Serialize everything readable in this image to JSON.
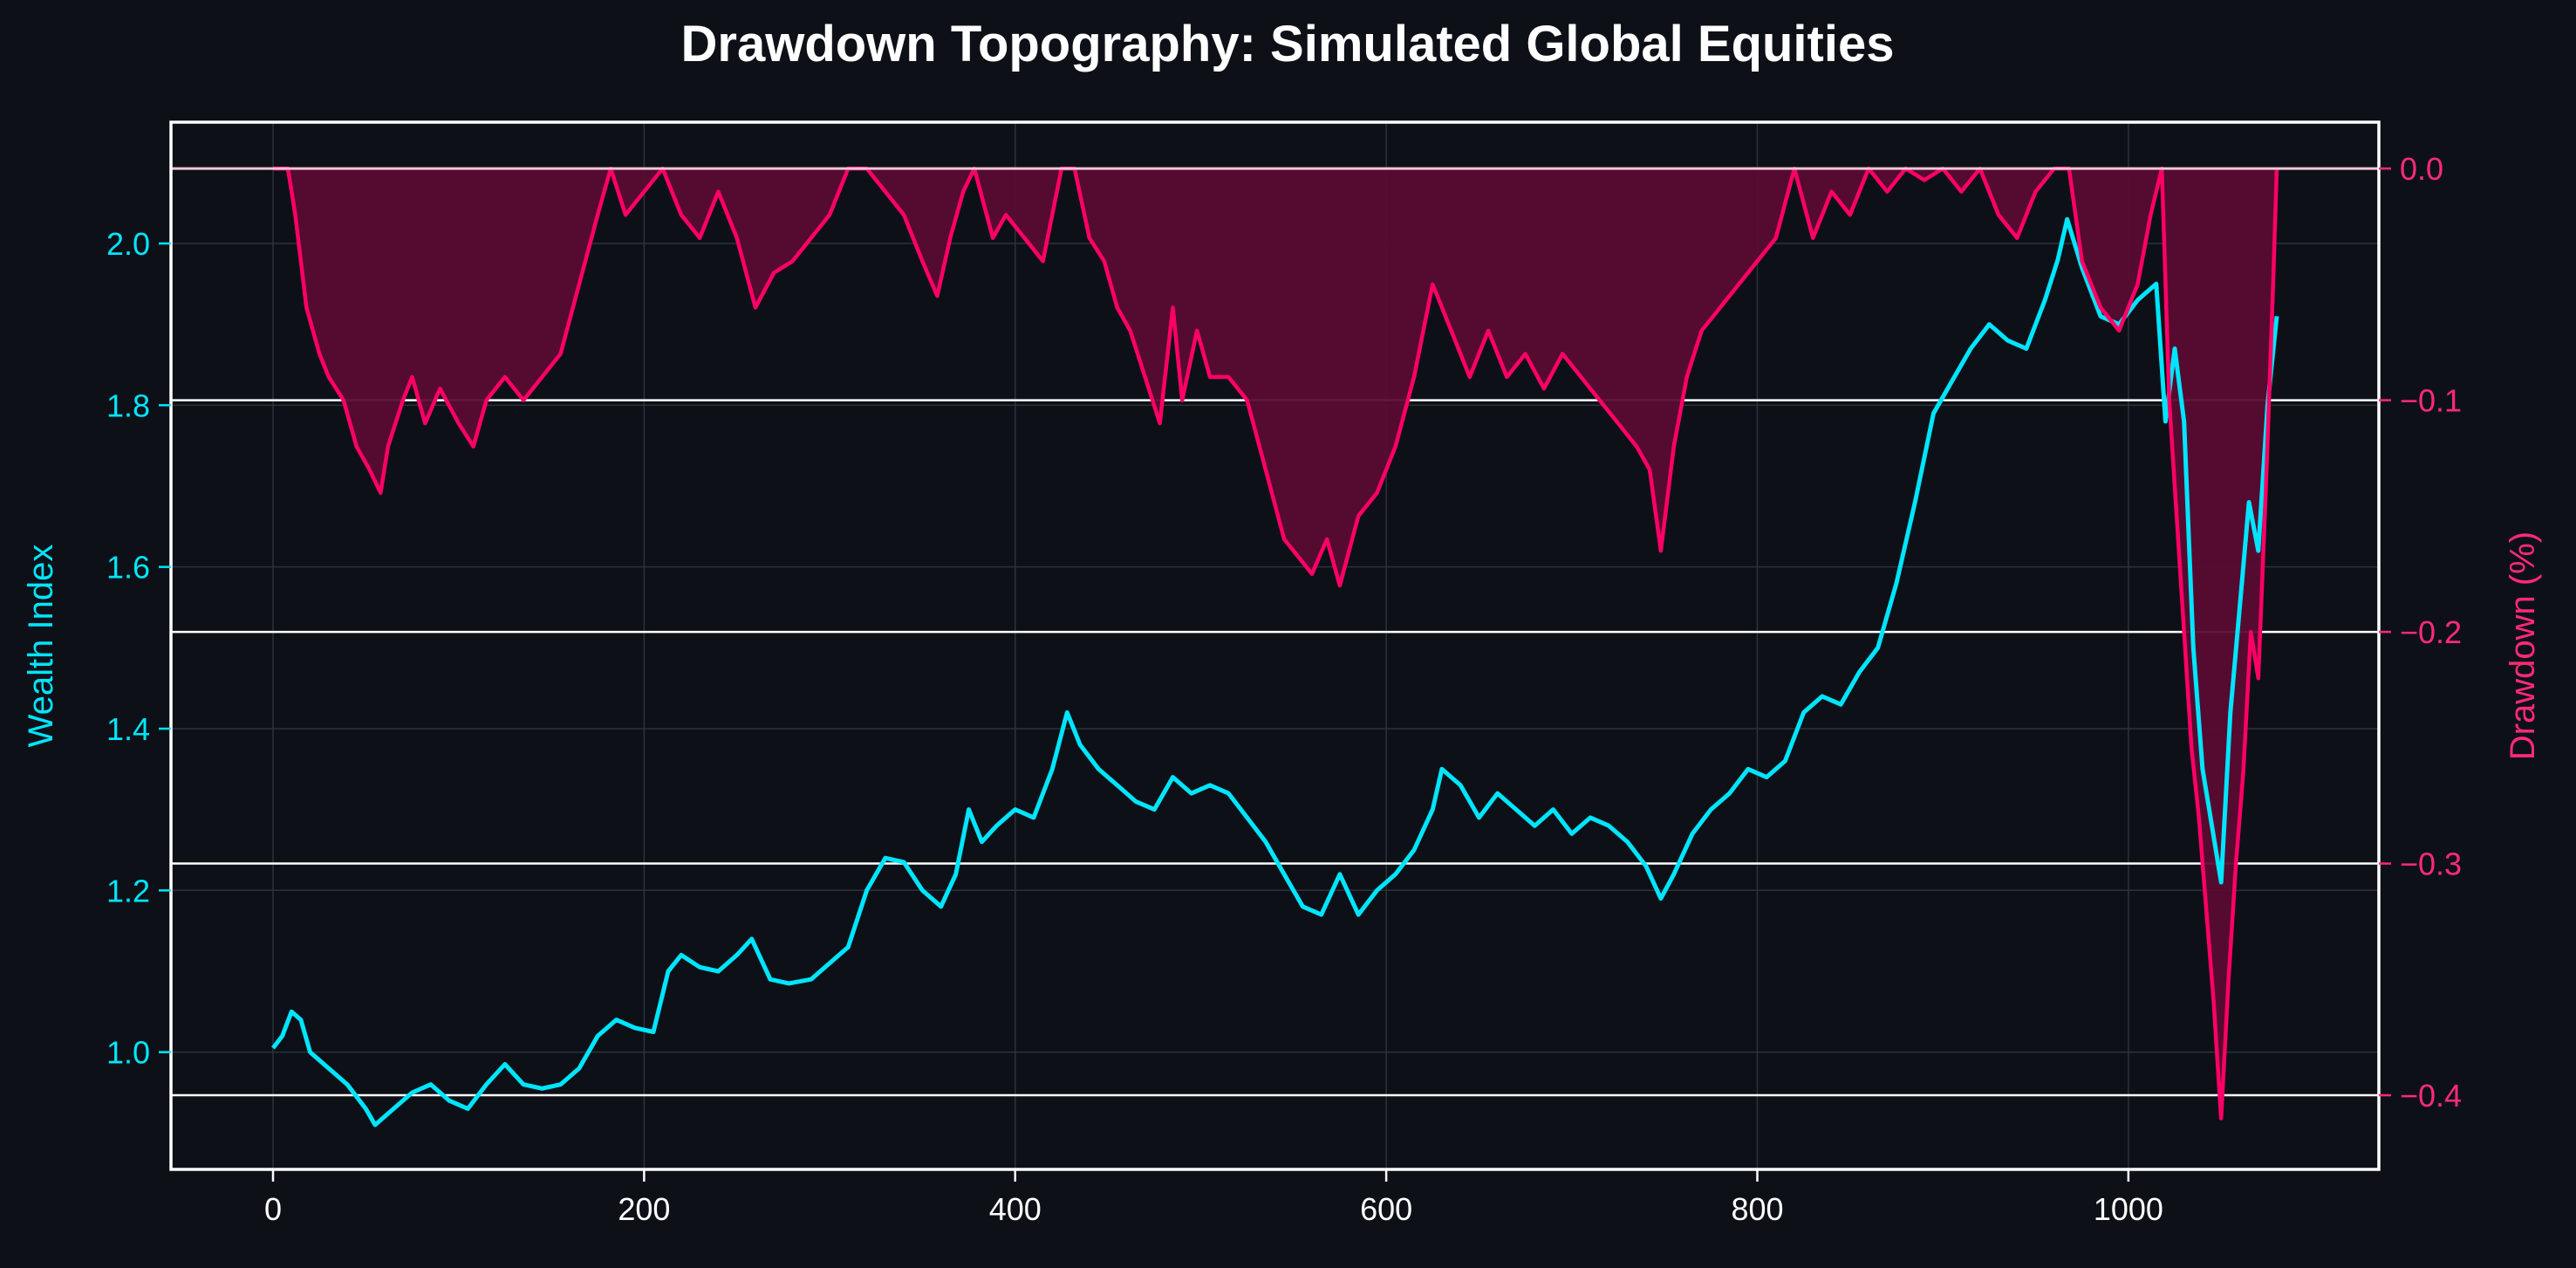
{
  "chart_data": {
    "type": "line",
    "title": "Drawdown Topography: Simulated Global Equities",
    "xlabel": "",
    "xlim": [
      -55,
      1135
    ],
    "x_ticks": [
      0,
      200,
      400,
      600,
      800,
      1000
    ],
    "left_axis": {
      "label": "Wealth Index",
      "lim": [
        0.855,
        2.15
      ],
      "ticks": [
        1.0,
        1.2,
        1.4,
        1.6,
        1.8,
        2.0
      ],
      "tick_labels": [
        "1.0",
        "1.2",
        "1.4",
        "1.6",
        "1.8",
        "2.0"
      ]
    },
    "right_axis": {
      "label": "Drawdown (%)",
      "lim": [
        -0.432,
        0.02
      ],
      "ticks": [
        0.0,
        -0.1,
        -0.2,
        -0.3,
        -0.4
      ],
      "tick_labels": [
        "0.0",
        "−0.1",
        "−0.2",
        "−0.3",
        "−0.4"
      ]
    },
    "series": [
      {
        "name": "Wealth Index",
        "axis": "left",
        "style": "line",
        "points": [
          [
            0,
            1.005
          ],
          [
            5,
            1.02
          ],
          [
            10,
            1.05
          ],
          [
            15,
            1.04
          ],
          [
            20,
            1.0
          ],
          [
            30,
            0.98
          ],
          [
            40,
            0.96
          ],
          [
            50,
            0.93
          ],
          [
            55,
            0.91
          ],
          [
            65,
            0.93
          ],
          [
            75,
            0.95
          ],
          [
            85,
            0.96
          ],
          [
            95,
            0.94
          ],
          [
            105,
            0.93
          ],
          [
            115,
            0.96
          ],
          [
            125,
            0.985
          ],
          [
            135,
            0.96
          ],
          [
            145,
            0.955
          ],
          [
            155,
            0.96
          ],
          [
            165,
            0.98
          ],
          [
            175,
            1.02
          ],
          [
            185,
            1.04
          ],
          [
            195,
            1.03
          ],
          [
            205,
            1.025
          ],
          [
            213,
            1.1
          ],
          [
            220,
            1.12
          ],
          [
            230,
            1.105
          ],
          [
            240,
            1.1
          ],
          [
            250,
            1.12
          ],
          [
            258,
            1.14
          ],
          [
            268,
            1.09
          ],
          [
            278,
            1.085
          ],
          [
            290,
            1.09
          ],
          [
            300,
            1.11
          ],
          [
            310,
            1.13
          ],
          [
            320,
            1.2
          ],
          [
            330,
            1.24
          ],
          [
            340,
            1.235
          ],
          [
            350,
            1.2
          ],
          [
            360,
            1.18
          ],
          [
            368,
            1.22
          ],
          [
            375,
            1.3
          ],
          [
            382,
            1.26
          ],
          [
            390,
            1.28
          ],
          [
            400,
            1.3
          ],
          [
            410,
            1.29
          ],
          [
            420,
            1.35
          ],
          [
            428,
            1.42
          ],
          [
            435,
            1.38
          ],
          [
            445,
            1.35
          ],
          [
            455,
            1.33
          ],
          [
            465,
            1.31
          ],
          [
            475,
            1.3
          ],
          [
            485,
            1.34
          ],
          [
            495,
            1.32
          ],
          [
            505,
            1.33
          ],
          [
            515,
            1.32
          ],
          [
            525,
            1.29
          ],
          [
            535,
            1.26
          ],
          [
            545,
            1.22
          ],
          [
            555,
            1.18
          ],
          [
            565,
            1.17
          ],
          [
            575,
            1.22
          ],
          [
            585,
            1.17
          ],
          [
            595,
            1.2
          ],
          [
            605,
            1.22
          ],
          [
            615,
            1.25
          ],
          [
            625,
            1.3
          ],
          [
            630,
            1.35
          ],
          [
            640,
            1.33
          ],
          [
            650,
            1.29
          ],
          [
            660,
            1.32
          ],
          [
            670,
            1.3
          ],
          [
            680,
            1.28
          ],
          [
            690,
            1.3
          ],
          [
            700,
            1.27
          ],
          [
            710,
            1.29
          ],
          [
            720,
            1.28
          ],
          [
            730,
            1.26
          ],
          [
            740,
            1.23
          ],
          [
            748,
            1.19
          ],
          [
            755,
            1.22
          ],
          [
            765,
            1.27
          ],
          [
            775,
            1.3
          ],
          [
            785,
            1.32
          ],
          [
            795,
            1.35
          ],
          [
            805,
            1.34
          ],
          [
            815,
            1.36
          ],
          [
            825,
            1.42
          ],
          [
            835,
            1.44
          ],
          [
            845,
            1.43
          ],
          [
            855,
            1.47
          ],
          [
            865,
            1.5
          ],
          [
            875,
            1.58
          ],
          [
            885,
            1.68
          ],
          [
            895,
            1.79
          ],
          [
            905,
            1.83
          ],
          [
            915,
            1.87
          ],
          [
            925,
            1.9
          ],
          [
            935,
            1.88
          ],
          [
            945,
            1.87
          ],
          [
            955,
            1.93
          ],
          [
            962,
            1.98
          ],
          [
            967,
            2.03
          ],
          [
            975,
            1.97
          ],
          [
            985,
            1.91
          ],
          [
            995,
            1.9
          ],
          [
            1005,
            1.93
          ],
          [
            1015,
            1.95
          ],
          [
            1020,
            1.78
          ],
          [
            1025,
            1.87
          ],
          [
            1030,
            1.78
          ],
          [
            1035,
            1.5
          ],
          [
            1040,
            1.35
          ],
          [
            1045,
            1.28
          ],
          [
            1050,
            1.21
          ],
          [
            1055,
            1.42
          ],
          [
            1060,
            1.55
          ],
          [
            1065,
            1.68
          ],
          [
            1070,
            1.62
          ],
          [
            1075,
            1.8
          ],
          [
            1080,
            1.91
          ]
        ]
      },
      {
        "name": "Drawdown (%)",
        "axis": "right",
        "style": "area",
        "points": [
          [
            0,
            0.0
          ],
          [
            8,
            0.0
          ],
          [
            12,
            -0.02
          ],
          [
            18,
            -0.06
          ],
          [
            25,
            -0.08
          ],
          [
            30,
            -0.09
          ],
          [
            38,
            -0.1
          ],
          [
            45,
            -0.12
          ],
          [
            52,
            -0.13
          ],
          [
            58,
            -0.14
          ],
          [
            62,
            -0.12
          ],
          [
            70,
            -0.1
          ],
          [
            75,
            -0.09
          ],
          [
            82,
            -0.11
          ],
          [
            90,
            -0.095
          ],
          [
            100,
            -0.11
          ],
          [
            108,
            -0.12
          ],
          [
            115,
            -0.1
          ],
          [
            125,
            -0.09
          ],
          [
            135,
            -0.1
          ],
          [
            145,
            -0.09
          ],
          [
            155,
            -0.08
          ],
          [
            165,
            -0.05
          ],
          [
            175,
            -0.02
          ],
          [
            182,
            0.0
          ],
          [
            190,
            -0.02
          ],
          [
            200,
            -0.01
          ],
          [
            210,
            0.0
          ],
          [
            220,
            -0.02
          ],
          [
            230,
            -0.03
          ],
          [
            240,
            -0.01
          ],
          [
            250,
            -0.03
          ],
          [
            260,
            -0.06
          ],
          [
            270,
            -0.045
          ],
          [
            280,
            -0.04
          ],
          [
            290,
            -0.03
          ],
          [
            300,
            -0.02
          ],
          [
            310,
            0.0
          ],
          [
            320,
            0.0
          ],
          [
            330,
            -0.01
          ],
          [
            340,
            -0.02
          ],
          [
            350,
            -0.04
          ],
          [
            358,
            -0.055
          ],
          [
            365,
            -0.03
          ],
          [
            372,
            -0.01
          ],
          [
            378,
            0.0
          ],
          [
            388,
            -0.03
          ],
          [
            395,
            -0.02
          ],
          [
            405,
            -0.03
          ],
          [
            415,
            -0.04
          ],
          [
            425,
            0.0
          ],
          [
            432,
            0.0
          ],
          [
            440,
            -0.03
          ],
          [
            448,
            -0.04
          ],
          [
            455,
            -0.06
          ],
          [
            462,
            -0.07
          ],
          [
            470,
            -0.09
          ],
          [
            478,
            -0.11
          ],
          [
            485,
            -0.06
          ],
          [
            490,
            -0.1
          ],
          [
            498,
            -0.07
          ],
          [
            505,
            -0.09
          ],
          [
            515,
            -0.09
          ],
          [
            525,
            -0.1
          ],
          [
            535,
            -0.13
          ],
          [
            545,
            -0.16
          ],
          [
            555,
            -0.17
          ],
          [
            560,
            -0.175
          ],
          [
            568,
            -0.16
          ],
          [
            575,
            -0.18
          ],
          [
            585,
            -0.15
          ],
          [
            595,
            -0.14
          ],
          [
            605,
            -0.12
          ],
          [
            615,
            -0.09
          ],
          [
            625,
            -0.05
          ],
          [
            635,
            -0.07
          ],
          [
            645,
            -0.09
          ],
          [
            655,
            -0.07
          ],
          [
            665,
            -0.09
          ],
          [
            675,
            -0.08
          ],
          [
            685,
            -0.095
          ],
          [
            695,
            -0.08
          ],
          [
            705,
            -0.09
          ],
          [
            715,
            -0.1
          ],
          [
            725,
            -0.11
          ],
          [
            735,
            -0.12
          ],
          [
            742,
            -0.13
          ],
          [
            748,
            -0.165
          ],
          [
            755,
            -0.12
          ],
          [
            762,
            -0.09
          ],
          [
            770,
            -0.07
          ],
          [
            780,
            -0.06
          ],
          [
            790,
            -0.05
          ],
          [
            800,
            -0.04
          ],
          [
            810,
            -0.03
          ],
          [
            820,
            0.0
          ],
          [
            830,
            -0.03
          ],
          [
            840,
            -0.01
          ],
          [
            850,
            -0.02
          ],
          [
            860,
            0.0
          ],
          [
            870,
            -0.01
          ],
          [
            880,
            0.0
          ],
          [
            890,
            -0.005
          ],
          [
            900,
            0.0
          ],
          [
            910,
            -0.01
          ],
          [
            920,
            -0.0
          ],
          [
            930,
            -0.02
          ],
          [
            940,
            -0.03
          ],
          [
            950,
            -0.01
          ],
          [
            960,
            0.0
          ],
          [
            968,
            0.0
          ],
          [
            975,
            -0.04
          ],
          [
            985,
            -0.06
          ],
          [
            995,
            -0.07
          ],
          [
            1005,
            -0.05
          ],
          [
            1012,
            -0.02
          ],
          [
            1018,
            0.0
          ],
          [
            1022,
            -0.1
          ],
          [
            1026,
            -0.15
          ],
          [
            1030,
            -0.2
          ],
          [
            1034,
            -0.25
          ],
          [
            1038,
            -0.28
          ],
          [
            1042,
            -0.32
          ],
          [
            1046,
            -0.36
          ],
          [
            1050,
            -0.41
          ],
          [
            1054,
            -0.35
          ],
          [
            1058,
            -0.3
          ],
          [
            1062,
            -0.26
          ],
          [
            1066,
            -0.2
          ],
          [
            1070,
            -0.22
          ],
          [
            1074,
            -0.14
          ],
          [
            1078,
            -0.05
          ],
          [
            1080,
            0.0
          ]
        ]
      }
    ],
    "colors": {
      "background": "#0d1117",
      "wealth_line": "#00e5ff",
      "drawdown_line": "#ff0066",
      "drawdown_fill": "#5a0c30",
      "drawdown_overlap": "#5aa8d6",
      "zero_line": "#f4c6d8",
      "frame": "#ffffff",
      "grid": "#2c323c",
      "left_tick_color": "#00e5ff",
      "right_tick_color": "#ff2a77",
      "x_tick_color": "#ffffff",
      "right_gridline_color": "#ffffff"
    },
    "grid": true,
    "legend": "none"
  }
}
